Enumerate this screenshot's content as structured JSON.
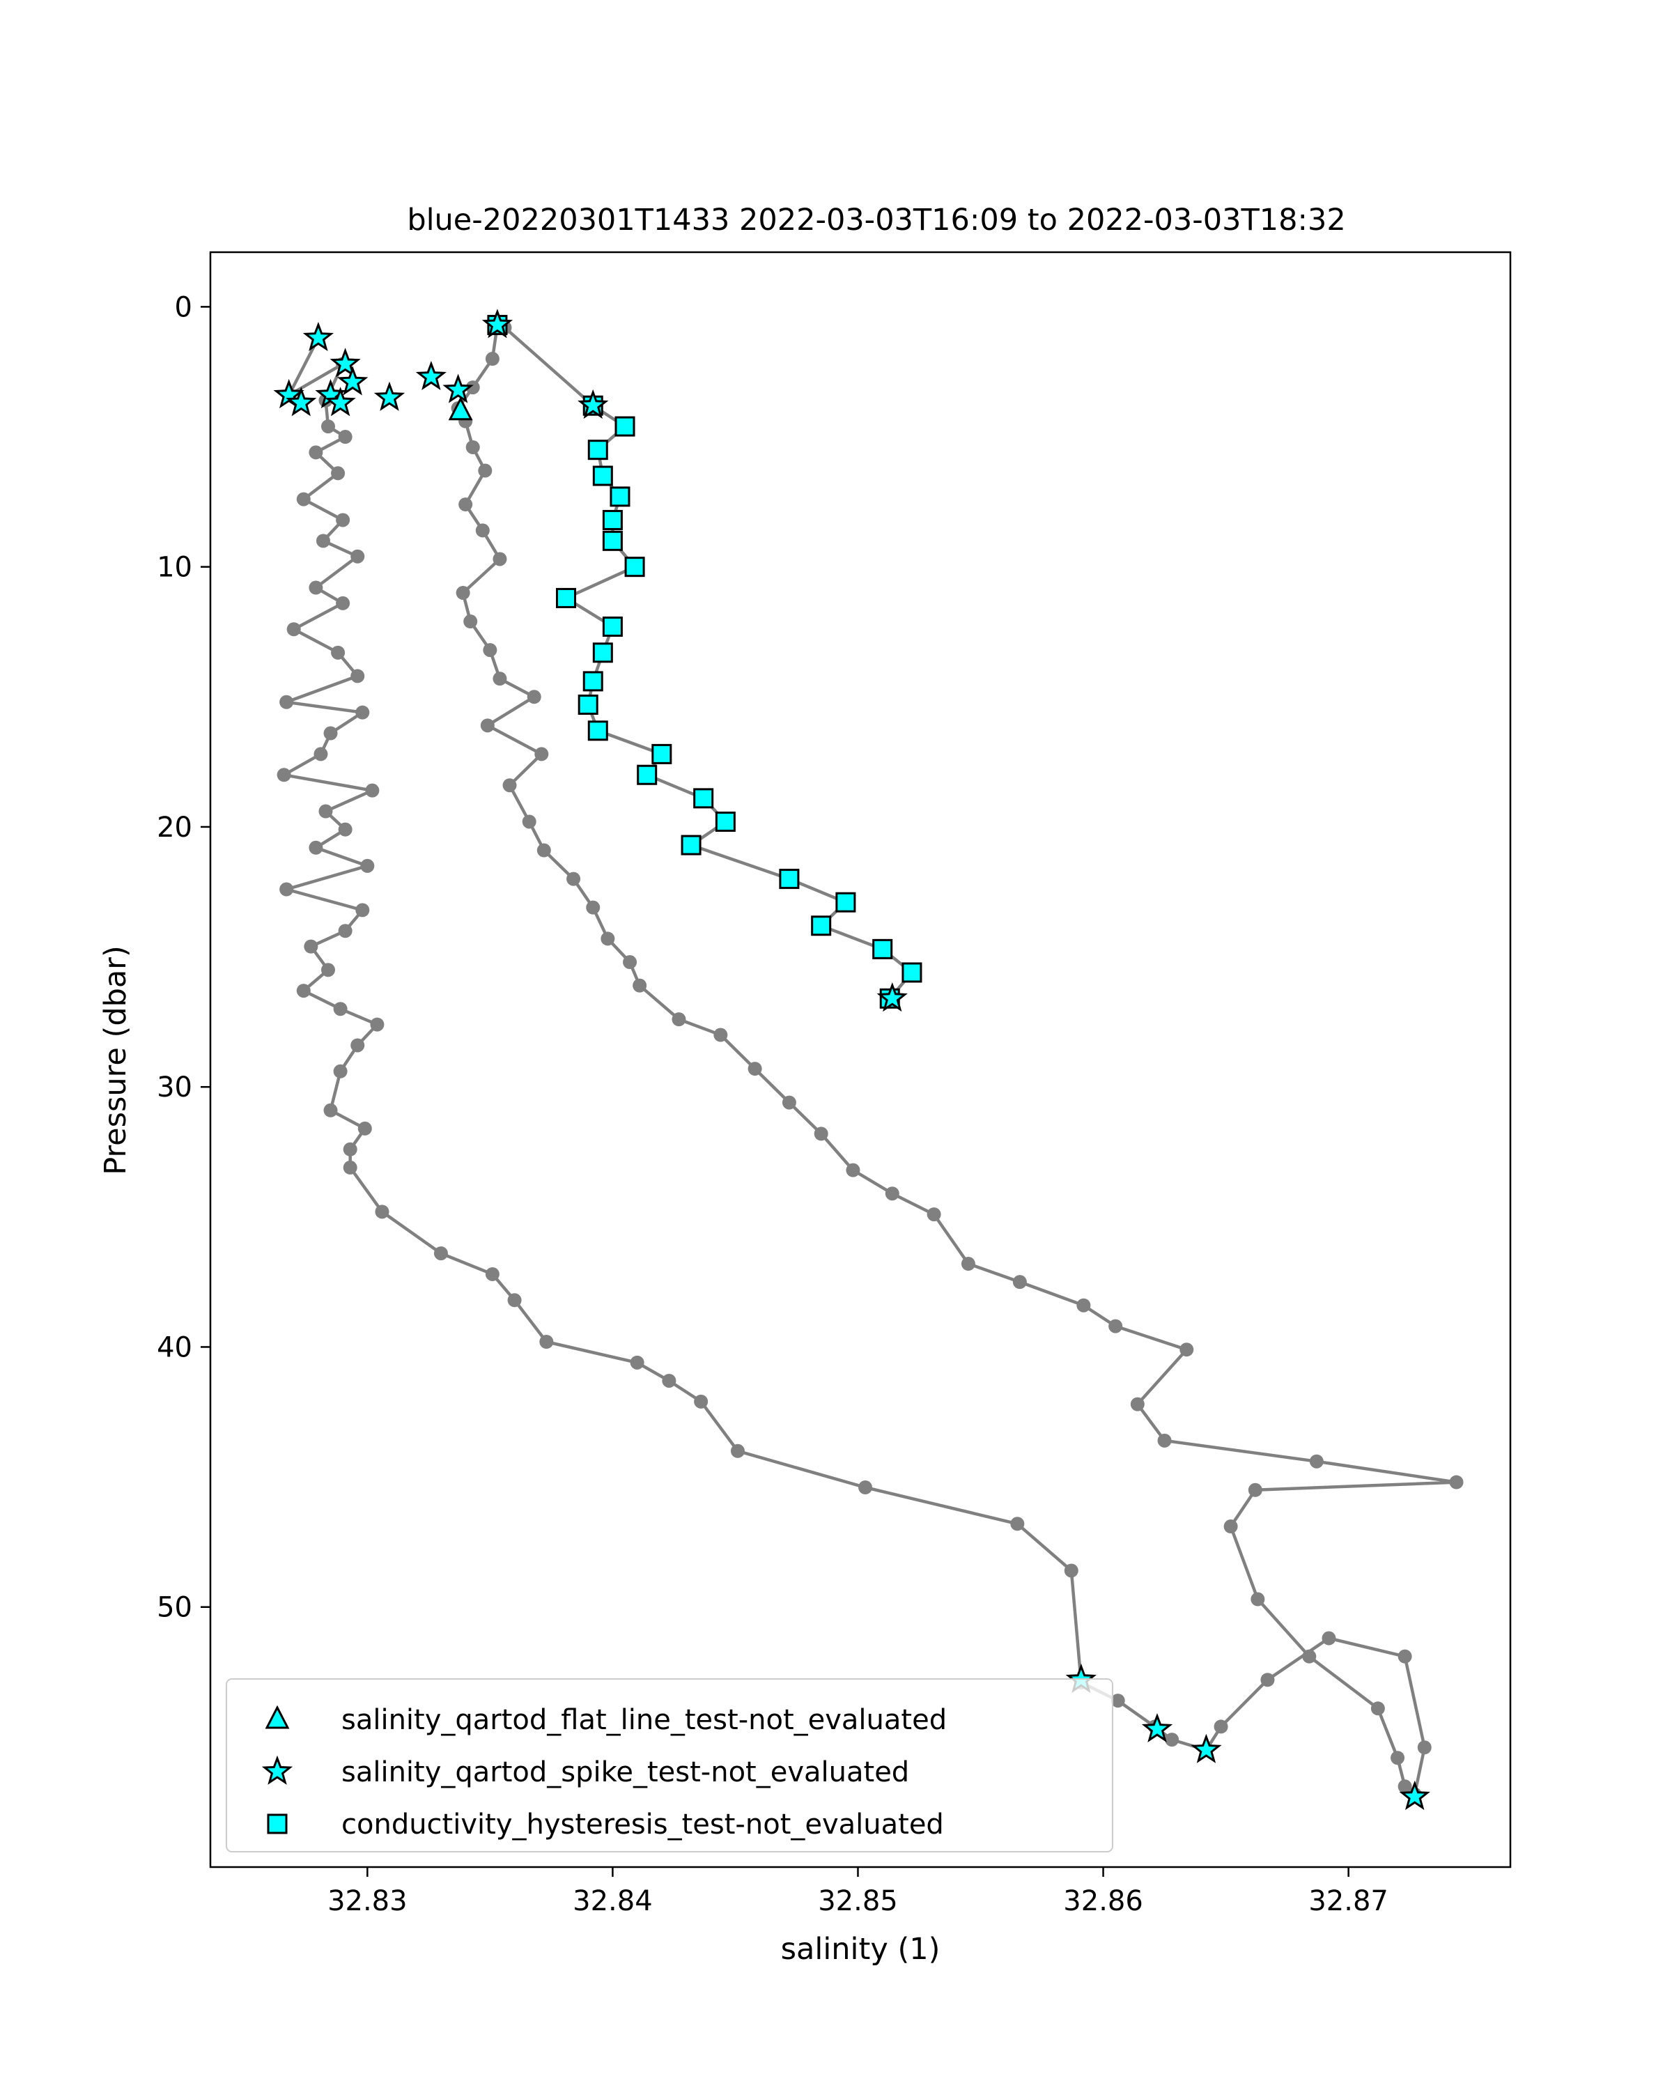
{
  "chart_data": {
    "type": "line",
    "title": "blue-20220301T1433 2022-03-03T16:09 to 2022-03-03T18:32",
    "xlabel": "salinity (1)",
    "ylabel": "Pressure (dbar)",
    "xlim": [
      32.8236,
      32.8766
    ],
    "ylim": [
      60.0,
      -2.1
    ],
    "y_inverted": true,
    "grid": false,
    "legend_position": "lower left",
    "x_ticks": [
      32.83,
      32.84,
      32.85,
      32.86,
      32.87
    ],
    "x_tick_labels": [
      "32.83",
      "32.84",
      "32.85",
      "32.86",
      "32.87"
    ],
    "y_ticks": [
      0,
      10,
      20,
      30,
      40,
      50
    ],
    "y_tick_labels": [
      "0",
      "10",
      "20",
      "30",
      "40",
      "50"
    ],
    "colors": {
      "line": "#808080",
      "marker": "#00ffff",
      "marker_edge": "#000000"
    },
    "profile_line": [
      [
        32.828,
        1.2
      ],
      [
        32.8268,
        3.4
      ],
      [
        32.829,
        2.2
      ],
      [
        32.8283,
        3.6
      ],
      [
        32.8284,
        4.6
      ],
      [
        32.8291,
        5.0
      ],
      [
        32.8279,
        5.6
      ],
      [
        32.8288,
        6.4
      ],
      [
        32.8274,
        7.4
      ],
      [
        32.829,
        8.2
      ],
      [
        32.8282,
        9.0
      ],
      [
        32.8296,
        9.6
      ],
      [
        32.8279,
        10.8
      ],
      [
        32.829,
        11.4
      ],
      [
        32.827,
        12.4
      ],
      [
        32.8288,
        13.3
      ],
      [
        32.8296,
        14.2
      ],
      [
        32.8267,
        15.2
      ],
      [
        32.8298,
        15.6
      ],
      [
        32.8285,
        16.4
      ],
      [
        32.8281,
        17.2
      ],
      [
        32.8266,
        18.0
      ],
      [
        32.8302,
        18.6
      ],
      [
        32.8283,
        19.4
      ],
      [
        32.8291,
        20.1
      ],
      [
        32.8279,
        20.8
      ],
      [
        32.83,
        21.5
      ],
      [
        32.8267,
        22.4
      ],
      [
        32.8298,
        23.2
      ],
      [
        32.8291,
        24.0
      ],
      [
        32.8277,
        24.6
      ],
      [
        32.8284,
        25.5
      ],
      [
        32.8274,
        26.3
      ],
      [
        32.8289,
        27.0
      ],
      [
        32.8304,
        27.6
      ],
      [
        32.8296,
        28.4
      ],
      [
        32.8289,
        29.4
      ],
      [
        32.8285,
        30.9
      ],
      [
        32.8299,
        31.6
      ],
      [
        32.8293,
        32.4
      ],
      [
        32.8293,
        33.1
      ],
      [
        32.8306,
        34.8
      ],
      [
        32.833,
        36.4
      ],
      [
        32.8351,
        37.2
      ],
      [
        32.836,
        38.2
      ],
      [
        32.8373,
        39.8
      ],
      [
        32.841,
        40.6
      ],
      [
        32.8423,
        41.3
      ],
      [
        32.8436,
        42.1
      ],
      [
        32.8451,
        44.0
      ],
      [
        32.8503,
        45.4
      ],
      [
        32.8565,
        46.8
      ],
      [
        32.8587,
        48.6
      ],
      [
        32.8591,
        52.9
      ],
      [
        32.8606,
        53.6
      ],
      [
        32.8621,
        54.6
      ],
      [
        32.8628,
        55.1
      ],
      [
        32.8642,
        55.5
      ],
      [
        32.8648,
        54.6
      ],
      [
        32.8667,
        52.8
      ],
      [
        32.8692,
        51.2
      ],
      [
        32.8723,
        51.9
      ],
      [
        32.8731,
        55.4
      ],
      [
        32.8727,
        57.2
      ],
      [
        32.8723,
        56.9
      ],
      [
        32.872,
        55.8
      ],
      [
        32.8712,
        53.9
      ],
      [
        32.8684,
        51.9
      ],
      [
        32.8663,
        49.7
      ],
      [
        32.8652,
        46.9
      ],
      [
        32.8662,
        45.5
      ],
      [
        32.8744,
        45.2
      ],
      [
        32.8687,
        44.4
      ],
      [
        32.8625,
        43.6
      ],
      [
        32.8614,
        42.2
      ],
      [
        32.8634,
        40.1
      ],
      [
        32.8605,
        39.2
      ],
      [
        32.8592,
        38.4
      ],
      [
        32.8566,
        37.5
      ],
      [
        32.8545,
        36.8
      ],
      [
        32.8531,
        34.9
      ],
      [
        32.8514,
        34.1
      ],
      [
        32.8498,
        33.2
      ],
      [
        32.8485,
        31.8
      ],
      [
        32.8472,
        30.6
      ],
      [
        32.8458,
        29.3
      ],
      [
        32.8444,
        28.0
      ],
      [
        32.8427,
        27.4
      ],
      [
        32.8411,
        26.1
      ],
      [
        32.8407,
        25.2
      ],
      [
        32.8398,
        24.3
      ],
      [
        32.8392,
        23.1
      ],
      [
        32.8384,
        22.0
      ],
      [
        32.8372,
        20.9
      ],
      [
        32.8366,
        19.8
      ],
      [
        32.8358,
        18.4
      ],
      [
        32.8371,
        17.2
      ],
      [
        32.8349,
        16.1
      ],
      [
        32.8368,
        15.0
      ],
      [
        32.8354,
        14.3
      ],
      [
        32.835,
        13.2
      ],
      [
        32.8342,
        12.1
      ],
      [
        32.8339,
        11.0
      ],
      [
        32.8354,
        9.7
      ],
      [
        32.8347,
        8.6
      ],
      [
        32.834,
        7.6
      ],
      [
        32.8348,
        6.3
      ],
      [
        32.8343,
        5.4
      ],
      [
        32.834,
        4.4
      ],
      [
        32.8337,
        3.9
      ],
      [
        32.8343,
        3.1
      ],
      [
        32.8351,
        2.0
      ],
      [
        32.8353,
        0.7
      ],
      [
        32.8356,
        0.8
      ],
      [
        32.8392,
        3.8
      ],
      [
        32.8405,
        4.6
      ],
      [
        32.8394,
        5.5
      ],
      [
        32.8396,
        6.5
      ],
      [
        32.8403,
        7.3
      ],
      [
        32.84,
        8.2
      ],
      [
        32.84,
        9.0
      ],
      [
        32.8409,
        10.0
      ],
      [
        32.8381,
        11.2
      ],
      [
        32.84,
        12.3
      ],
      [
        32.8396,
        13.3
      ],
      [
        32.8392,
        14.4
      ],
      [
        32.839,
        15.3
      ],
      [
        32.8394,
        16.3
      ],
      [
        32.842,
        17.2
      ],
      [
        32.8414,
        18.0
      ],
      [
        32.8437,
        18.9
      ],
      [
        32.8446,
        19.8
      ],
      [
        32.8432,
        20.7
      ],
      [
        32.8472,
        22.0
      ],
      [
        32.8495,
        22.9
      ],
      [
        32.8485,
        23.8
      ],
      [
        32.851,
        24.7
      ],
      [
        32.8522,
        25.6
      ],
      [
        32.8513,
        26.6
      ]
    ],
    "series": [
      {
        "name": "salinity_qartod_flat_line_test-not_evaluated",
        "marker": "triangle",
        "x": [
          32.8338
        ],
        "y": [
          4.0
        ]
      },
      {
        "name": "salinity_qartod_spike_test-not_evaluated",
        "marker": "star",
        "x": [
          32.828,
          32.8291,
          32.8294,
          32.8268,
          32.8273,
          32.8285,
          32.8289,
          32.8309,
          32.8326,
          32.8337,
          32.8353,
          32.8392,
          32.8591,
          32.8622,
          32.8642,
          32.8727,
          32.8514
        ],
        "y": [
          1.2,
          2.2,
          2.9,
          3.4,
          3.7,
          3.4,
          3.7,
          3.5,
          2.7,
          3.2,
          0.7,
          3.8,
          52.8,
          54.7,
          55.5,
          57.3,
          26.6
        ]
      },
      {
        "name": "conductivity_hysteresis_test-not_evaluated",
        "marker": "square",
        "x": [
          32.8353,
          32.8392,
          32.8405,
          32.8394,
          32.8396,
          32.8403,
          32.84,
          32.84,
          32.8409,
          32.8381,
          32.84,
          32.8396,
          32.8392,
          32.839,
          32.8394,
          32.842,
          32.8414,
          32.8437,
          32.8446,
          32.8432,
          32.8472,
          32.8495,
          32.8485,
          32.851,
          32.8522,
          32.8513
        ],
        "y": [
          0.7,
          3.8,
          4.6,
          5.5,
          6.5,
          7.3,
          8.2,
          9.0,
          10.0,
          11.2,
          12.3,
          13.3,
          14.4,
          15.3,
          16.3,
          17.2,
          18.0,
          18.9,
          19.8,
          20.7,
          22.0,
          22.9,
          23.8,
          24.7,
          25.6,
          26.6
        ]
      }
    ],
    "legend": [
      "salinity_qartod_flat_line_test-not_evaluated",
      "salinity_qartod_spike_test-not_evaluated",
      "conductivity_hysteresis_test-not_evaluated"
    ]
  }
}
